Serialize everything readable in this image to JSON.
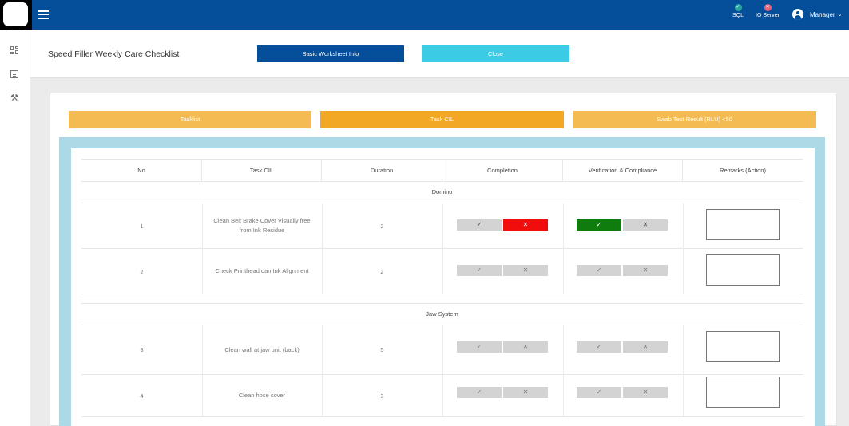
{
  "topbar": {
    "menu_icon": "hamburger-icon",
    "sql": {
      "label": "SQL",
      "glyph": "✓",
      "color": "#2aa7a0"
    },
    "io_server": {
      "label": "IO Server",
      "glyph": "✕",
      "color": "#e5617a"
    },
    "user": {
      "name": "Manager",
      "icon": "user-icon"
    }
  },
  "sidebar": {
    "items": [
      {
        "icon": "dashboard-icon"
      },
      {
        "icon": "document-icon"
      },
      {
        "icon": "tools-icon"
      }
    ]
  },
  "header": {
    "title": "Speed Filler Weekly Care Checklist",
    "info_button": "Basic Worksheet Info",
    "close_button": "Close"
  },
  "tabs": [
    "Tasklist",
    "Task CIL",
    "Swab Test Result (RLU) <50"
  ],
  "table": {
    "columns": [
      "No",
      "Task CIL",
      "Duration",
      "Completion",
      "Verification & Compliance",
      "Remarks (Action)"
    ],
    "sections": [
      {
        "name": "Domino",
        "rows": [
          {
            "no": "1",
            "task": "Clean Belt Brake Cover Visually free from Ink Residue",
            "duration": "2",
            "completion": "no",
            "verification": "yes",
            "remarks": ""
          },
          {
            "no": "2",
            "task": "Check Printhead dan Ink Alignment",
            "duration": "2",
            "completion": "",
            "verification": "",
            "remarks": ""
          }
        ]
      },
      {
        "name": "Jaw System",
        "rows": [
          {
            "no": "3",
            "task": "Clean wall at jaw unit (back)",
            "duration": "5",
            "completion": "",
            "verification": "",
            "remarks": ""
          },
          {
            "no": "4",
            "task": "Clean hose cover",
            "duration": "3",
            "completion": "",
            "verification": "",
            "remarks": ""
          }
        ]
      }
    ],
    "yes_glyph": "✓",
    "no_glyph": "✕"
  },
  "colors": {
    "topbar": "#054f9a",
    "info_button": "#054f9a",
    "close_button": "#3ccbe5",
    "tab": "#f4bb52",
    "tab_active": "#f3a825",
    "frame": "#add8e5",
    "selected_no": "#f20d0d",
    "selected_yes": "#0e7d0e"
  }
}
